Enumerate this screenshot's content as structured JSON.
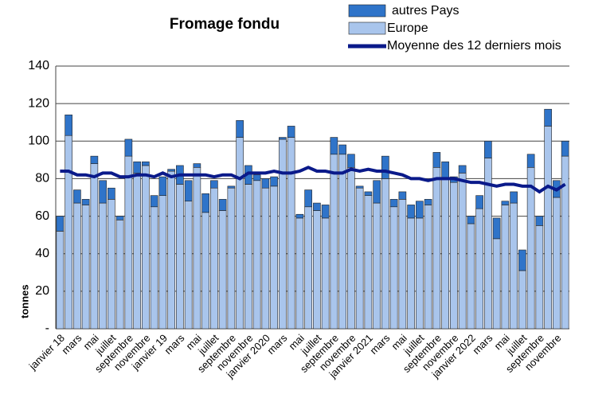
{
  "chart_data": {
    "type": "bar",
    "title": "Fromage fondu",
    "y_label": "tonnes",
    "categories": [
      "janvier 18",
      null,
      "mars",
      null,
      "mai",
      null,
      "juillet",
      null,
      "septembre",
      null,
      "novembre",
      null,
      "janvier 19",
      null,
      "mars",
      null,
      "mai",
      null,
      "juillet",
      null,
      "septembre",
      null,
      "novembre",
      null,
      "janvier 2020",
      null,
      "mars",
      null,
      "mai",
      null,
      "juillet",
      null,
      "septembre",
      null,
      "novembre",
      null,
      "janvier 2021",
      null,
      "mars",
      null,
      "mai",
      null,
      "juillet",
      null,
      "septembre",
      null,
      "novembre",
      null,
      "janvier 2022",
      null,
      "mars",
      null,
      "mai",
      null,
      "juillet",
      null,
      "septembre",
      null,
      "novembre",
      null
    ],
    "series": [
      {
        "name": "autres Pays",
        "type": "bar",
        "color": "#2f74c9",
        "values": [
          8,
          11,
          7,
          3,
          4,
          12,
          6,
          2,
          9,
          6,
          2,
          6,
          10,
          1,
          10,
          11,
          2,
          10,
          4,
          6,
          1,
          9,
          10,
          3,
          5,
          5,
          1,
          6,
          2,
          9,
          4,
          7,
          9,
          5,
          7,
          1,
          2,
          12,
          12,
          4,
          4,
          7,
          9,
          3,
          8,
          9,
          3,
          4,
          4,
          7,
          9,
          11,
          2,
          6,
          11,
          7,
          5,
          9,
          9,
          8
        ]
      },
      {
        "name": "Europe",
        "type": "bar",
        "color": "#a9c5ec",
        "values": [
          52,
          103,
          67,
          66,
          88,
          67,
          69,
          58,
          92,
          83,
          87,
          65,
          71,
          84,
          77,
          68,
          86,
          62,
          75,
          63,
          75,
          102,
          77,
          79,
          75,
          76,
          101,
          102,
          59,
          65,
          63,
          59,
          93,
          93,
          86,
          75,
          71,
          67,
          80,
          65,
          69,
          59,
          59,
          66,
          86,
          80,
          78,
          83,
          56,
          64,
          91,
          48,
          66,
          67,
          31,
          86,
          55,
          108,
          70,
          92
        ]
      },
      {
        "name": "Moyenne des 12 derniers mois",
        "type": "line",
        "color": "#0a1a8a",
        "values": [
          84,
          84,
          82,
          82,
          81,
          83,
          83,
          81,
          81,
          82,
          82,
          81,
          83,
          81,
          82,
          82,
          82,
          82,
          81,
          82,
          82,
          80,
          83,
          83,
          83,
          84,
          83,
          83,
          84,
          86,
          84,
          84,
          83,
          83,
          85,
          84,
          85,
          84,
          84,
          83,
          82,
          80,
          80,
          79,
          80,
          80,
          80,
          79,
          78,
          78,
          77,
          76,
          77,
          77,
          76,
          76,
          73,
          76,
          74,
          77
        ]
      }
    ],
    "ylim": [
      0,
      140
    ],
    "yticks": [
      {
        "value": 0,
        "label": "-"
      },
      20,
      40,
      60,
      80,
      100,
      120,
      140
    ],
    "grid": true
  }
}
